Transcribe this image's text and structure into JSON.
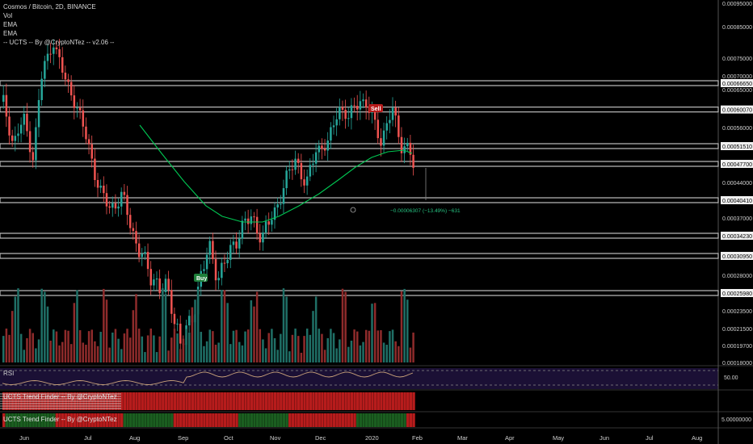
{
  "legend": {
    "symbol": "Cosmos / Bitcoin, 2D, BINANCE",
    "vol": "Vol",
    "ema1": "EMA",
    "ema2": "EMA",
    "ucts": "-- UCTS -- By @CryptoNTez -- v2.06 --"
  },
  "panes": {
    "rsi_label": "RSI",
    "rsi_value": "50.00",
    "trend1_label": "UCTS Trend Finder -- By @CryptoNTez",
    "trend2_label": "UCTS Trend Finder -- By @CryptoNTez",
    "trend2_value": "5.00000000"
  },
  "colors": {
    "background": "#000000",
    "up": "#26a69a",
    "down": "#ef5350",
    "ema": "#00c853",
    "rsi_line": "#c9a27a",
    "hline": "#bdbdbd",
    "trend_red": "#b71c1c",
    "trend_green": "#1b5e20"
  },
  "chart_data": {
    "type": "candlestick",
    "xlabels": [
      "Jun",
      "Jul",
      "Aug",
      "Sep",
      "Oct",
      "Nov",
      "Dec",
      "2020",
      "Feb",
      "Mar",
      "Apr",
      "May",
      "Jun",
      "Jul",
      "Aug"
    ],
    "y_axis_labels": [
      "0.00095000",
      "0.00085000",
      "0.00075000",
      "0.00070000",
      "0.00066650",
      "0.00065000",
      "0.00060070",
      "0.00056000",
      "0.00051510",
      "0.00047700",
      "0.00044000",
      "0.00040410",
      "0.00037000",
      "0.00034230",
      "0.00030950",
      "0.00028000",
      "0.00025980",
      "0.00023500",
      "0.00021500",
      "0.00019700",
      "0.00018000"
    ],
    "horizontal_levels": [
      0.0006665,
      0.0006007,
      0.0005151,
      0.000477,
      0.0004041,
      0.0003423,
      0.0003095,
      0.0002598
    ],
    "signals": [
      {
        "label": "Buy",
        "month": "Sep"
      },
      {
        "label": "Sell",
        "month": "2020"
      }
    ],
    "measure_annotation": "−0.00006307 (−13.49%) −631",
    "series": [
      {
        "name": "EMA"
      },
      {
        "name": "Vol"
      }
    ]
  }
}
